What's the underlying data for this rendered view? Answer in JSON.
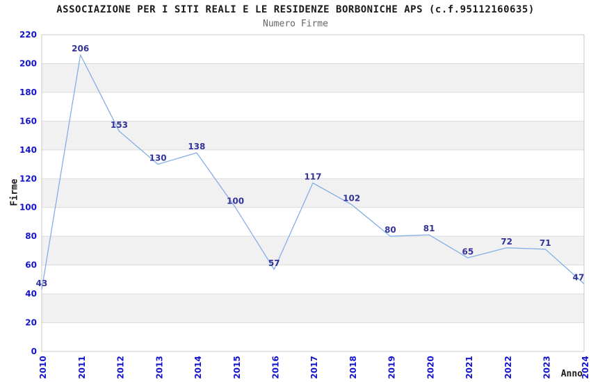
{
  "header": {
    "title": "ASSOCIAZIONE PER I SITI REALI E LE RESIDENZE BORBONICHE APS (c.f.95112160635)",
    "subtitle": "Numero Firme"
  },
  "chart_data": {
    "type": "line",
    "title": "ASSOCIAZIONE PER I SITI REALI E LE RESIDENZE BORBONICHE APS (c.f.95112160635)",
    "subtitle": "Numero Firme",
    "xlabel": "Anno",
    "ylabel": "Firme",
    "categories": [
      "2010",
      "2011",
      "2012",
      "2013",
      "2014",
      "2015",
      "2016",
      "2017",
      "2018",
      "2019",
      "2020",
      "2021",
      "2022",
      "2023",
      "2024"
    ],
    "values": [
      43,
      206,
      153,
      130,
      138,
      100,
      57,
      117,
      102,
      80,
      81,
      65,
      72,
      71,
      47
    ],
    "ylim": [
      0,
      220
    ],
    "ytick_step": 20,
    "yticks": [
      0,
      20,
      40,
      60,
      80,
      100,
      120,
      140,
      160,
      180,
      200,
      220
    ],
    "grid": "horizontal-alternating-bands",
    "legend_position": "none",
    "point_labels_visible": true,
    "colors": {
      "line": "#82AFE6",
      "tick_labels": "#1414CC",
      "value_labels": "#333399",
      "band": "#F1F1F1",
      "gridline": "#DCDCDC",
      "plot_border": "#C9C9C9",
      "title": "#1A1A1A",
      "subtitle": "#666666",
      "axis_titles": "#1A1A1A",
      "background": "#FFFFFF"
    }
  }
}
